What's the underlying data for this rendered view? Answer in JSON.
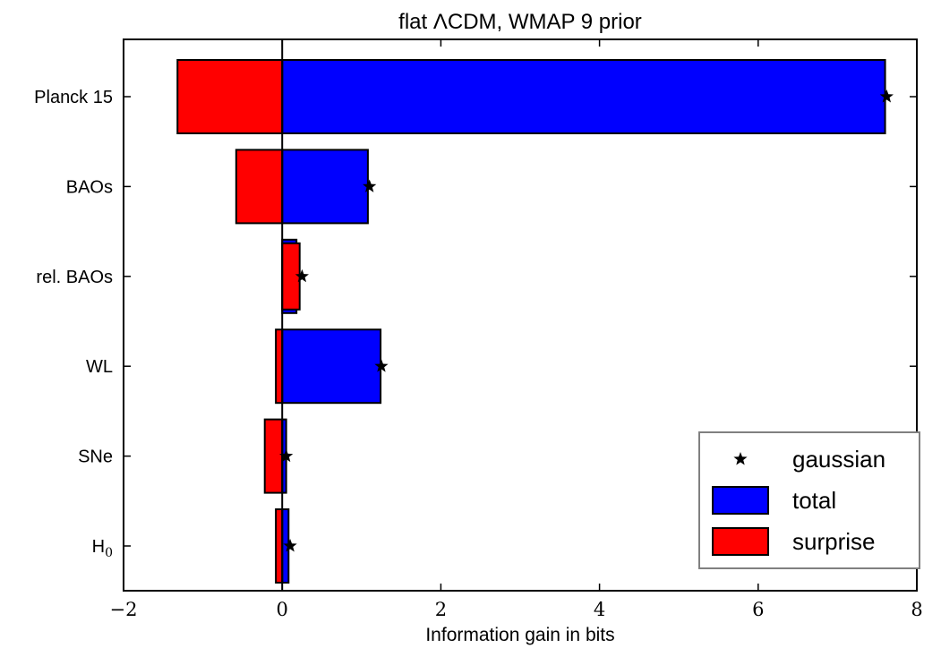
{
  "chart_data": {
    "type": "bar",
    "orientation": "horizontal",
    "title": "flat ΛCDM, WMAP 9 prior",
    "xlabel": "Information gain in bits",
    "ylabel": "",
    "xlim": [
      -2,
      8
    ],
    "xticks": [
      -2,
      0,
      2,
      4,
      6,
      8
    ],
    "xtick_labels": [
      "−2",
      "0",
      "2",
      "4",
      "6",
      "8"
    ],
    "categories": [
      "Planck 15",
      "BAOs",
      "rel. BAOs",
      "WL",
      "SNe",
      "H0"
    ],
    "category_labels": [
      {
        "text": "Planck 15",
        "sub": ""
      },
      {
        "text": "BAOs",
        "sub": ""
      },
      {
        "text": "rel. BAOs",
        "sub": ""
      },
      {
        "text": "WL",
        "sub": ""
      },
      {
        "text": "SNe",
        "sub": ""
      },
      {
        "text": "H",
        "sub": "0"
      }
    ],
    "series": [
      {
        "name": "total",
        "kind": "bar",
        "color": "#0000ff",
        "values": [
          7.6,
          1.08,
          0.18,
          1.24,
          0.05,
          0.08
        ]
      },
      {
        "name": "surprise",
        "kind": "bar",
        "color": "#ff0000",
        "values": [
          -1.32,
          -0.58,
          0.22,
          -0.08,
          -0.22,
          -0.08
        ]
      },
      {
        "name": "gaussian",
        "kind": "marker",
        "marker": "star",
        "color": "#000000",
        "values": [
          7.62,
          1.1,
          0.25,
          1.25,
          0.05,
          0.1
        ]
      }
    ],
    "zero_line": true,
    "grid": false,
    "legend": {
      "placement": "bottom-right",
      "entries": [
        {
          "label": "gaussian",
          "symbol": "star",
          "color": "#000000"
        },
        {
          "label": "total",
          "symbol": "box",
          "color": "#0000ff"
        },
        {
          "label": "surprise",
          "symbol": "box",
          "color": "#ff0000"
        }
      ]
    }
  }
}
